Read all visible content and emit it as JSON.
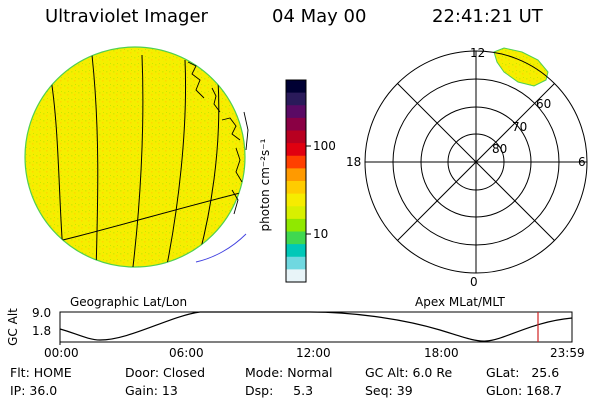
{
  "header": {
    "instrument": "Ultraviolet Imager",
    "date": "04 May 00",
    "time": "22:41:21 UT"
  },
  "geo_panel": {
    "label": "Geographic Lat/Lon"
  },
  "colorbar": {
    "label": "photon cm⁻²s⁻¹",
    "ticks": [
      "100",
      "10"
    ],
    "colors": [
      "#000033",
      "#2a1a5a",
      "#5a0a64",
      "#8a0044",
      "#b80020",
      "#e00010",
      "#ff4000",
      "#ff9a00",
      "#ffcc00",
      "#f6ec00",
      "#d8f000",
      "#90e800",
      "#40d850",
      "#00c8b8",
      "#70d8e0",
      "#e8f4f8"
    ]
  },
  "polar_panel": {
    "label": "Apex MLat/MLT",
    "mlt_labels": [
      "12",
      "6",
      "0",
      "18"
    ],
    "mlat_labels": [
      "60",
      "70",
      "80"
    ]
  },
  "altitude_plot": {
    "ylabel": "GC Alt",
    "yticks": [
      "9.0",
      "1.8"
    ],
    "xticks": [
      "00:00",
      "06:00",
      "12:00",
      "18:00",
      "23:59"
    ],
    "current_time_color": "#d02020"
  },
  "footer": {
    "flt": "Flt: HOME",
    "ip": "IP: 36.0",
    "door": "Door: Closed",
    "gain": "Gain: 13",
    "mode": "Mode: Normal",
    "dsp": "Dsp:     5.3",
    "gcalt": "GC Alt: 6.0 Re",
    "seq": "Seq: 39",
    "glat": "GLat:   25.6",
    "glon": "GLon: 168.7"
  }
}
